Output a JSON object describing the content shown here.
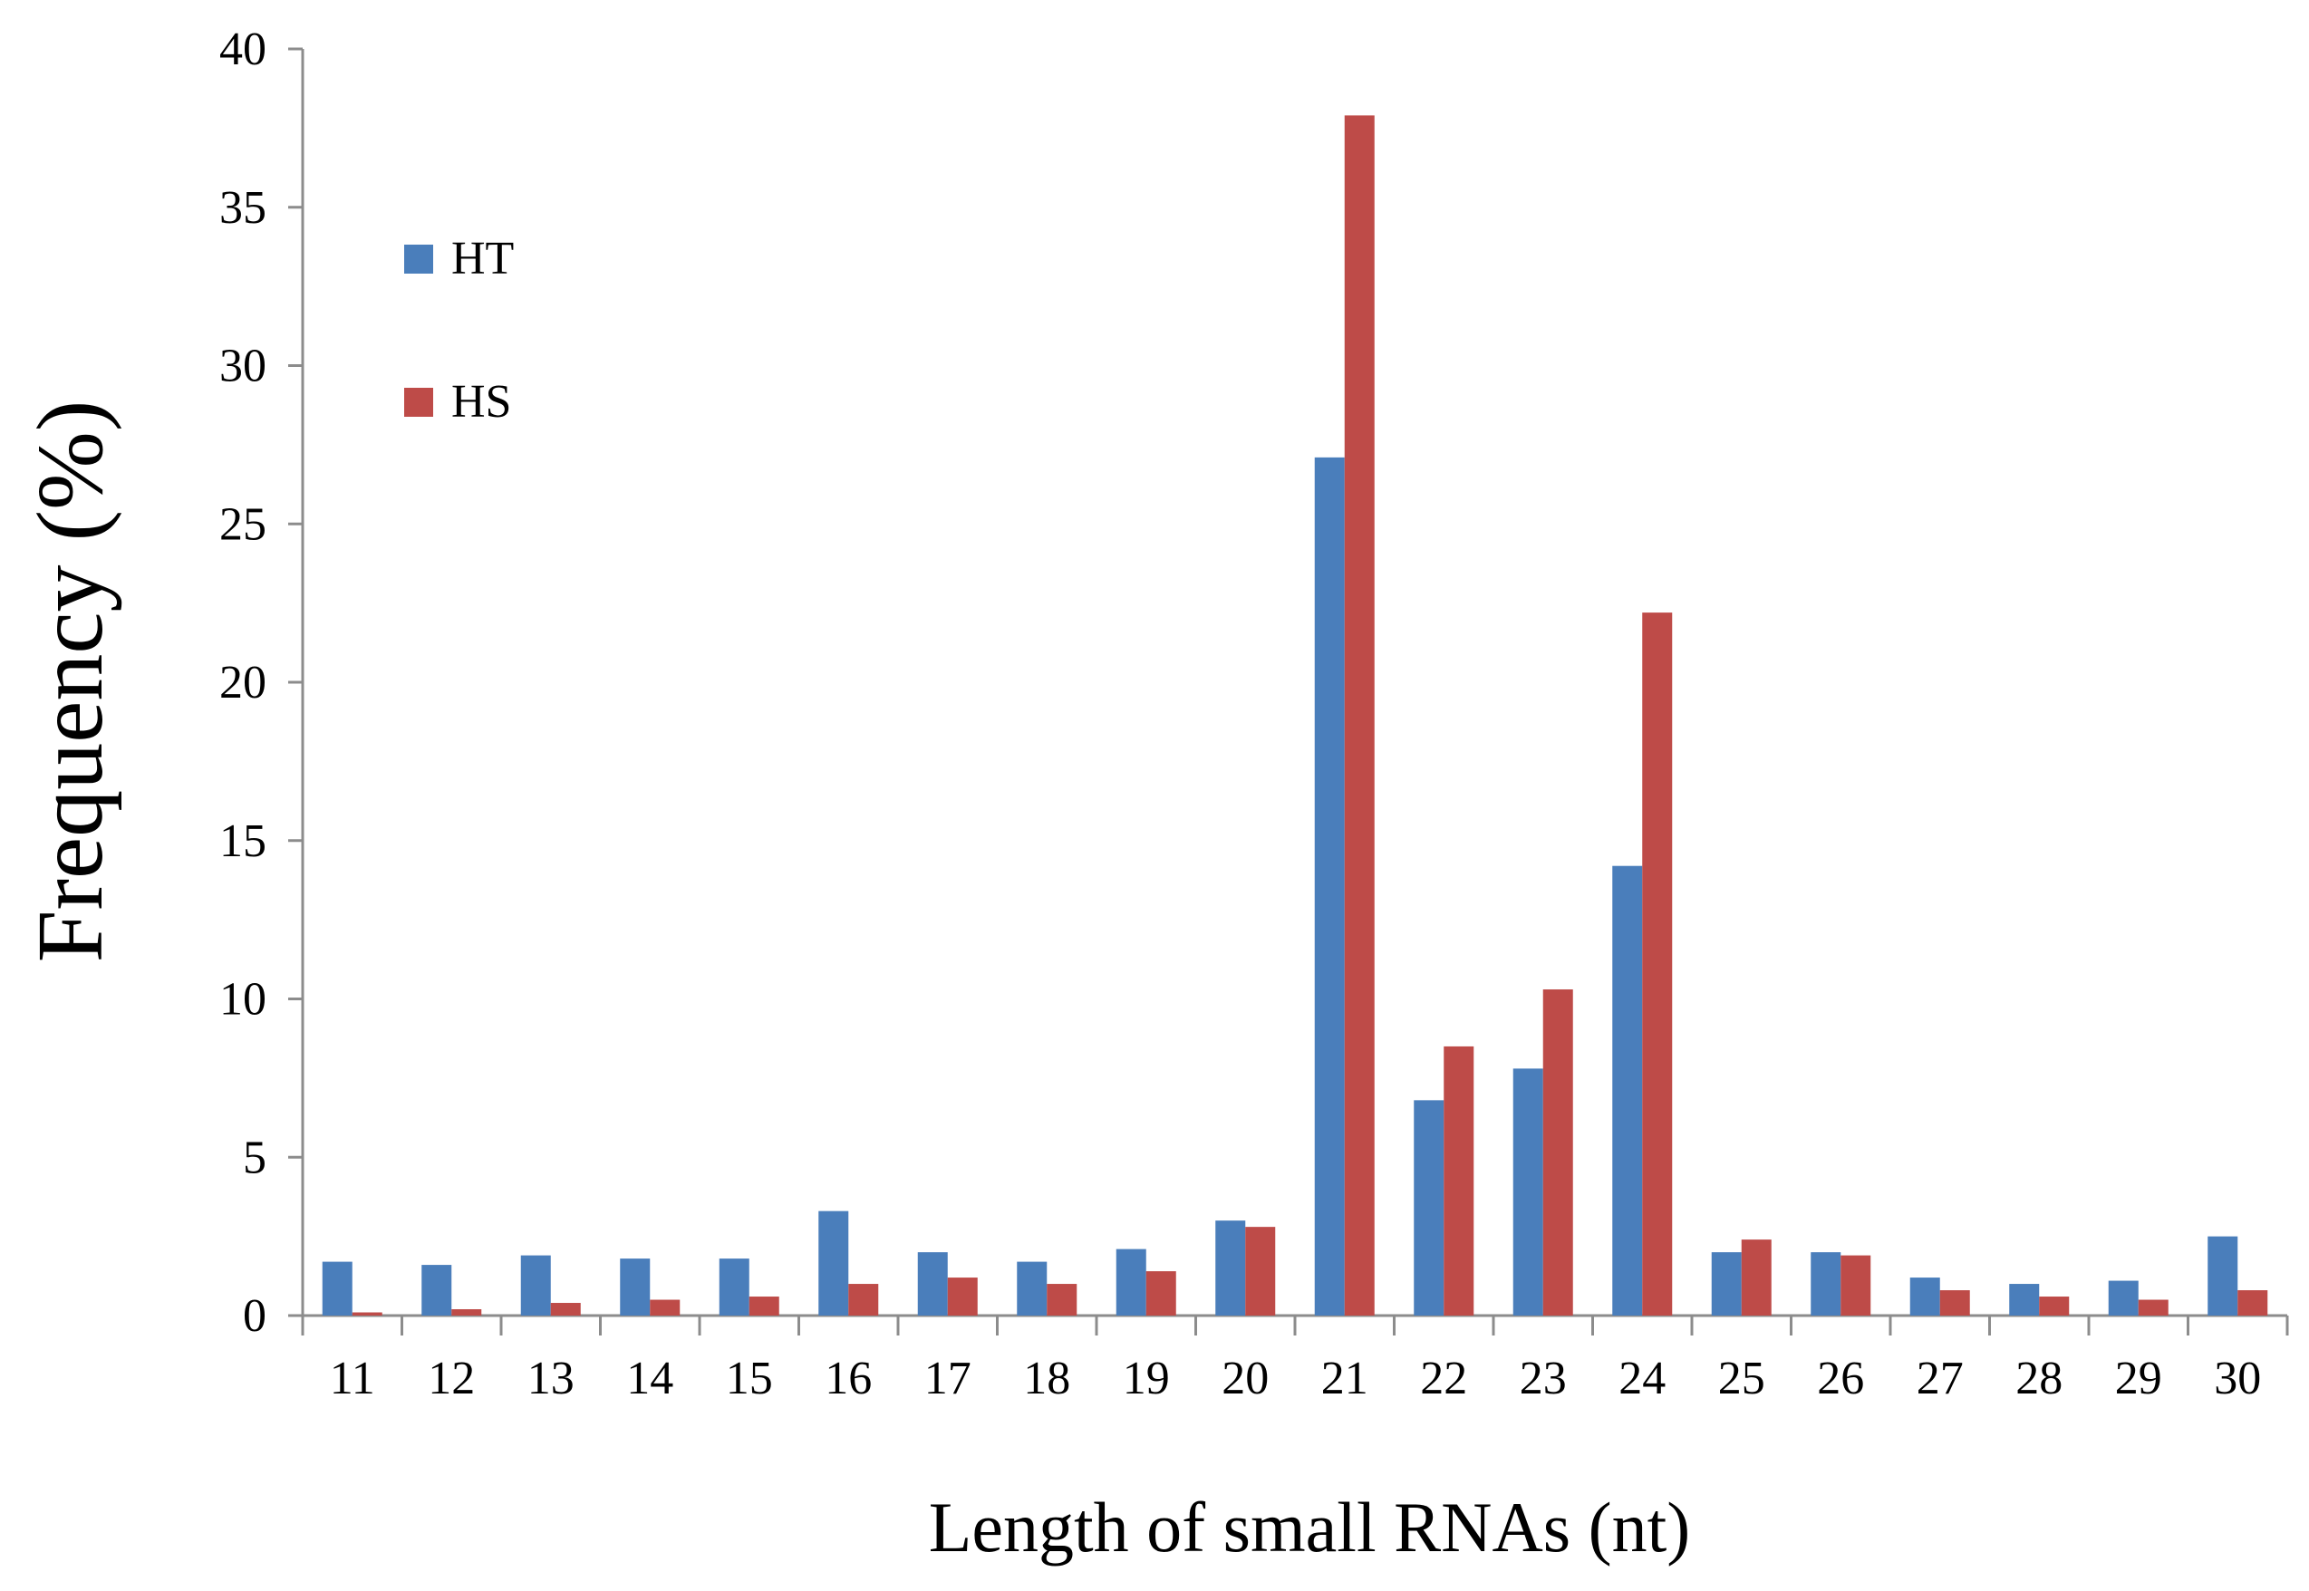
{
  "chart_data": {
    "type": "bar",
    "title": "",
    "xlabel": "Length of small RNAs (nt)",
    "ylabel": "Frequency (%)",
    "ylim": [
      0,
      40
    ],
    "yticks": [
      0,
      5,
      10,
      15,
      20,
      25,
      30,
      35,
      40
    ],
    "categories": [
      "11",
      "12",
      "13",
      "14",
      "15",
      "16",
      "17",
      "18",
      "19",
      "20",
      "21",
      "22",
      "23",
      "24",
      "25",
      "26",
      "27",
      "28",
      "29",
      "30"
    ],
    "series": [
      {
        "name": "HT",
        "color": "#4a7ebb",
        "values": [
          1.7,
          1.6,
          1.9,
          1.8,
          1.8,
          3.3,
          2.0,
          1.7,
          2.1,
          3.0,
          27.1,
          6.8,
          7.8,
          14.2,
          2.0,
          2.0,
          1.2,
          1.0,
          1.1,
          2.5
        ]
      },
      {
        "name": "HS",
        "color": "#be4b48",
        "values": [
          0.1,
          0.2,
          0.4,
          0.5,
          0.6,
          1.0,
          1.2,
          1.0,
          1.4,
          2.8,
          37.9,
          8.5,
          10.3,
          22.2,
          2.4,
          1.9,
          0.8,
          0.6,
          0.5,
          0.8
        ]
      }
    ],
    "legend": {
      "position": "top-left",
      "entries": [
        "HT",
        "HS"
      ]
    },
    "grid": false
  }
}
